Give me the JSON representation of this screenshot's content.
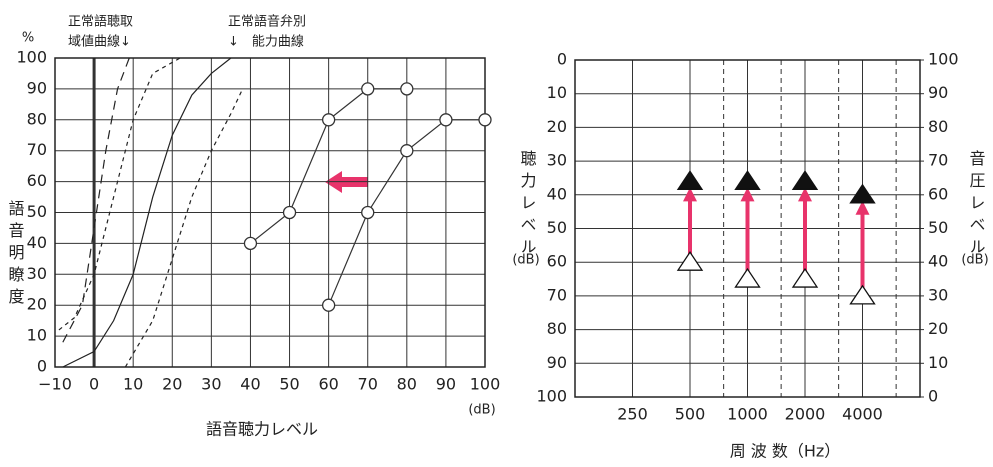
{
  "chart_data": [
    {
      "type": "line",
      "y_label": "%",
      "y_title": "語音明瞭度",
      "x_title": "語音聴力レベル",
      "x_unit": "(dB)",
      "annotations": [
        "正常語聴取",
        "域値曲線↓",
        "正常語音弁別",
        "↓　能力曲線"
      ],
      "xlim": [
        -10,
        100
      ],
      "ylim": [
        0,
        100
      ],
      "xticks": [
        {
          "value": -10,
          "label": "−10"
        },
        0,
        10,
        20,
        30,
        40,
        50,
        60,
        70,
        80,
        90,
        100
      ],
      "yticks": [
        0,
        10,
        20,
        30,
        40,
        50,
        60,
        70,
        80,
        90,
        100
      ],
      "grid": true,
      "zero_line": true,
      "reference_curves": [
        {
          "dash": "9,6",
          "x": [
            -8,
            -3,
            0,
            3,
            6,
            9
          ],
          "y": [
            8,
            20,
            45,
            70,
            90,
            100
          ]
        },
        {
          "dash": "4,4",
          "x": [
            -9,
            -5,
            0,
            5,
            10,
            15,
            22
          ],
          "y": [
            12,
            16,
            30,
            55,
            80,
            95,
            100
          ]
        },
        {
          "dash": "",
          "x": [
            -8,
            0,
            5,
            10,
            15,
            20,
            25,
            30,
            35
          ],
          "y": [
            0,
            5,
            15,
            30,
            55,
            75,
            88,
            95,
            100
          ]
        },
        {
          "dash": "4,4",
          "x": [
            8,
            15,
            20,
            25,
            30,
            35,
            38
          ],
          "y": [
            0,
            15,
            35,
            55,
            70,
            82,
            90
          ]
        }
      ],
      "series": [
        {
          "color": "#333333",
          "x": [
            40,
            50,
            60,
            70,
            80
          ],
          "values": [
            40,
            50,
            80,
            90,
            90
          ]
        },
        {
          "color": "#333333",
          "x": [
            60,
            70,
            80,
            90,
            100
          ],
          "values": [
            20,
            50,
            70,
            80,
            80
          ]
        }
      ]
    },
    {
      "type": "scatter",
      "y_title": "聴力レベル",
      "y_unit": "(dB)",
      "y2_title": "音圧レベル",
      "y2_unit": "(dB)",
      "x_title": "周 波 数（Hz）",
      "x_scale": "log",
      "xlim": [
        125,
        8000
      ],
      "xticks": [
        250,
        500,
        1000,
        2000,
        4000
      ],
      "minor_xticks": [
        750,
        1500,
        3000,
        6000
      ],
      "ylim": [
        100,
        0
      ],
      "yticks": [
        0,
        10,
        20,
        30,
        40,
        50,
        60,
        70,
        80,
        90,
        100
      ],
      "y2lim": [
        0,
        100
      ],
      "y2ticks": [
        100,
        90,
        80,
        70,
        60,
        50,
        40,
        30,
        20,
        10,
        0
      ],
      "grid": true,
      "shift_arrow_color": "#e8336b",
      "series": [
        {
          "marker": "filled-triangle",
          "color": "#111111",
          "x": [
            500,
            1000,
            2000,
            4000
          ],
          "values": [
            36,
            36,
            36,
            40
          ]
        },
        {
          "marker": "open-triangle",
          "color": "#111111",
          "x": [
            500,
            1000,
            2000,
            4000
          ],
          "values": [
            60,
            65,
            65,
            70
          ]
        }
      ]
    }
  ]
}
